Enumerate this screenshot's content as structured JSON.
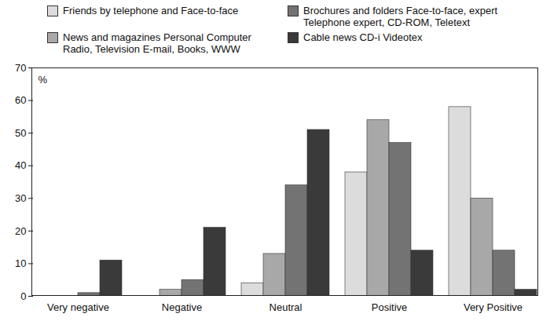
{
  "chart_data": {
    "type": "bar",
    "categories": [
      "Very negative",
      "Negative",
      "Neutral",
      "Positive",
      "Very Positive"
    ],
    "series": [
      {
        "name": "Friends by telephone and Face-to-face",
        "color": "#dcdcdc",
        "values": [
          0,
          0,
          4,
          38,
          58
        ]
      },
      {
        "name": "News and magazines Personal Computer Radio, Television E-mail, Books, WWW",
        "color": "#a8a8a8",
        "values": [
          0,
          2,
          13,
          54,
          30
        ]
      },
      {
        "name": "Brochures and folders Face-to-face, expert Telephone expert, CD-ROM, Teletext",
        "color": "#737373",
        "values": [
          1,
          5,
          34,
          47,
          14
        ]
      },
      {
        "name": "Cable news CD-i Videotex",
        "color": "#3a3a3a",
        "values": [
          11,
          21,
          51,
          14,
          2
        ]
      }
    ],
    "y_label": "%",
    "ylim": [
      0,
      70
    ],
    "yticks": [
      0,
      10,
      20,
      30,
      40,
      50,
      60,
      70
    ],
    "grid": false,
    "legend": "top"
  }
}
